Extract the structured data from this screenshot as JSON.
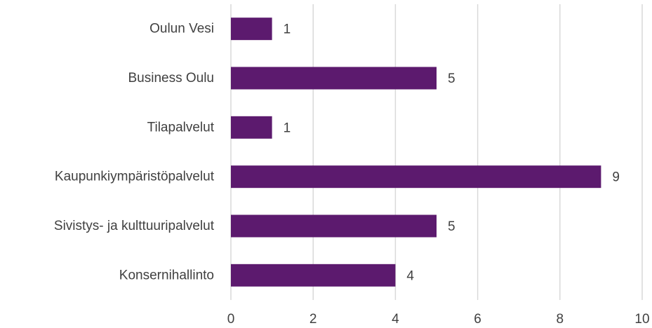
{
  "chart_data": {
    "type": "bar",
    "orientation": "horizontal",
    "categories": [
      "Oulun Vesi",
      "Business Oulu",
      "Tilapalvelut",
      "Kaupunkiympäristöpalvelut",
      "Sivistys- ja kulttuuripalvelut",
      "Konsernihallinto"
    ],
    "values": [
      1,
      5,
      1,
      9,
      5,
      4
    ],
    "data_labels": [
      "1",
      "5",
      "1",
      "9",
      "5",
      "4"
    ],
    "xlim": [
      0,
      10
    ],
    "x_ticks": [
      0,
      2,
      4,
      6,
      8,
      10
    ],
    "x_tick_labels": [
      "0",
      "2",
      "4",
      "6",
      "8",
      "10"
    ],
    "grid": true,
    "legend": "none",
    "colors": {
      "bar": "#5c1a6e",
      "grid": "#d9d9d9",
      "text": "#404040"
    }
  }
}
